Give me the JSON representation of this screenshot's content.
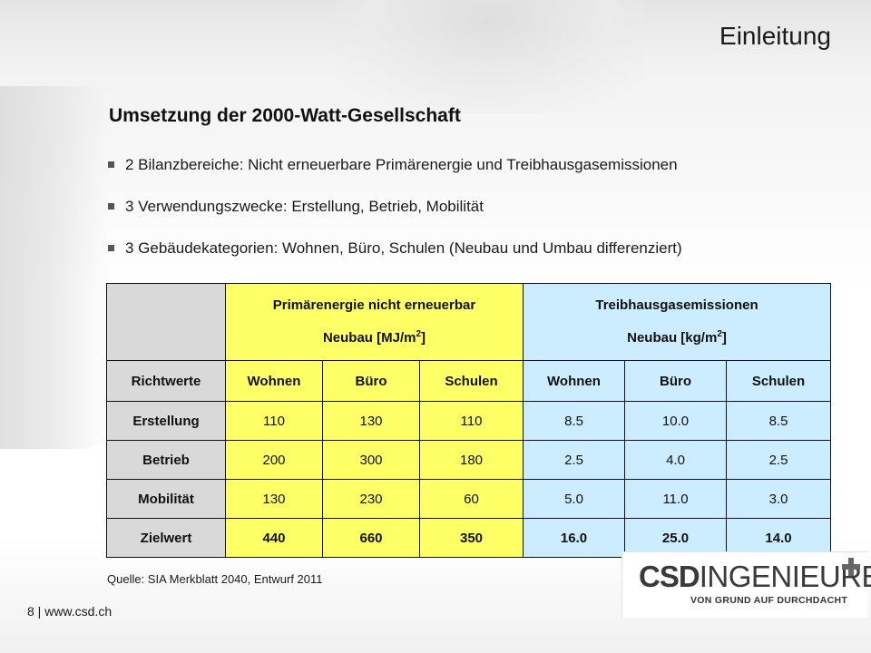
{
  "slide": {
    "title": "Einleitung",
    "heading": "Umsetzung der 2000-Watt-Gesellschaft",
    "bullets": [
      "2 Bilanzbereiche: Nicht erneuerbare Primärenergie und Treibhausgasemissionen",
      "3 Verwendungszwecke: Erstellung, Betrieb, Mobilität",
      "3 Gebäudekategorien: Wohnen, Büro, Schulen (Neubau und Umbau differenziert)"
    ],
    "source": "Quelle: SIA Merkblatt 2040, Entwurf 2011",
    "footer": "8 | www.csd.ch"
  },
  "table": {
    "group_headers": [
      {
        "line1": "Primärenergie nicht erneuerbar",
        "line2": "Neubau [MJ/m",
        "sup": "2",
        "close": "]"
      },
      {
        "line1": "Treibhausgasemissionen",
        "line2": "Neubau [kg/m",
        "sup": "2",
        "close": "]"
      }
    ],
    "column_headers": [
      "Richtwerte",
      "Wohnen",
      "Büro",
      "Schulen",
      "Wohnen",
      "Büro",
      "Schulen"
    ],
    "rows": [
      {
        "label": "Erstellung",
        "values": [
          "110",
          "130",
          "110",
          "8.5",
          "10.0",
          "8.5"
        ]
      },
      {
        "label": "Betrieb",
        "values": [
          "200",
          "300",
          "180",
          "2.5",
          "4.0",
          "2.5"
        ]
      },
      {
        "label": "Mobilität",
        "values": [
          "130",
          "230",
          "60",
          "5.0",
          "11.0",
          "3.0"
        ]
      },
      {
        "label": "Zielwert",
        "values": [
          "440",
          "660",
          "350",
          "16.0",
          "25.0",
          "14.0"
        ]
      }
    ]
  },
  "logo": {
    "brand_bold": "CSD",
    "brand_regular": "INGENIEURE",
    "tagline": "VON GRUND AUF DURCHDACHT"
  },
  "colors": {
    "header_gray": "#d9d9d9",
    "primary_energy_yellow": "#ffff66",
    "emissions_blue": "#ccecff"
  }
}
